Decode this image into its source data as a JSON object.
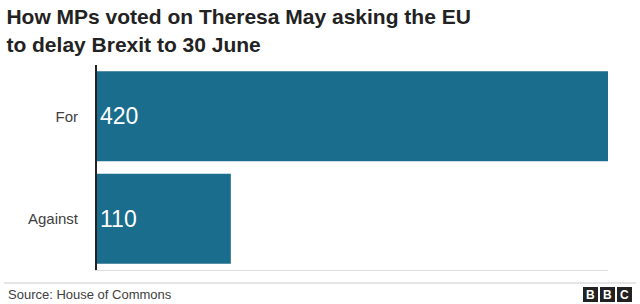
{
  "chart_data": {
    "type": "bar",
    "title": "How MPs voted on Theresa May asking the EU\nto delay Brexit to 30 June",
    "orientation": "horizontal",
    "categories": [
      "For",
      "Against"
    ],
    "values": [
      420,
      110
    ],
    "color": "#1b6d8d",
    "xlim": [
      0,
      420
    ],
    "xticks": [],
    "grid": false,
    "data_labels": true,
    "tick_labels": "y",
    "annotations": [
      "Source: House of Commons",
      "BBC"
    ]
  }
}
